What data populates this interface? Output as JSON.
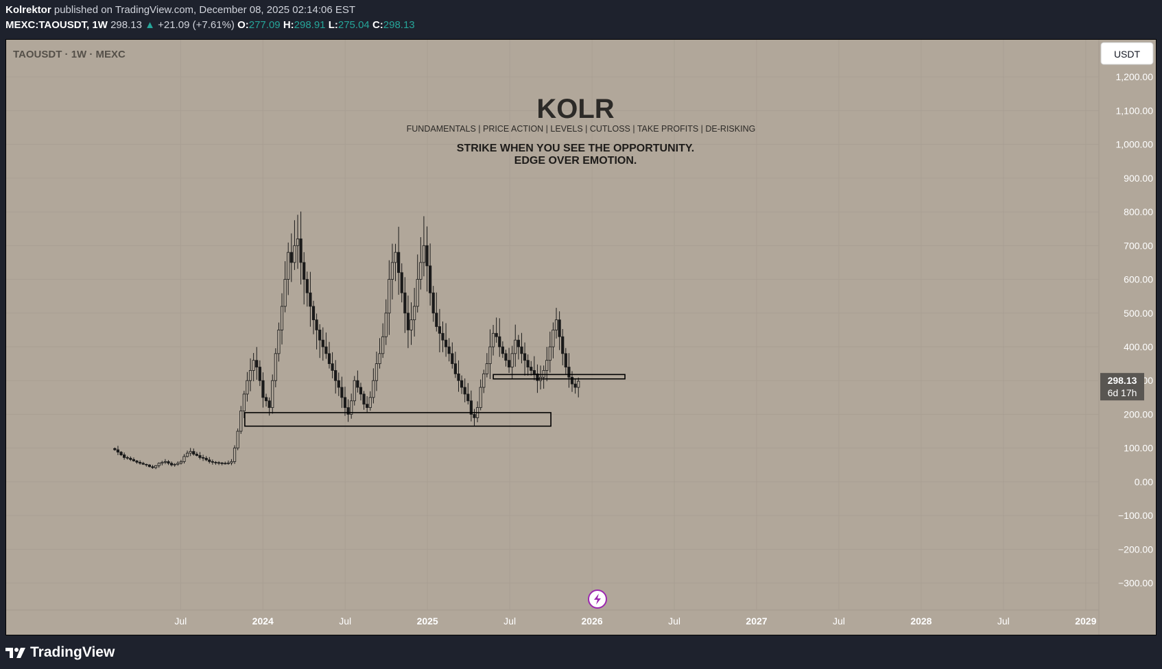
{
  "header": {
    "author": "Kolrektor",
    "published_text": "published on TradingView.com, December 08, 2025 02:14:06 EST",
    "symbol": "MEXC:TAOUSDT, 1W",
    "last": "298.13",
    "change_arrow": "▲",
    "change": "+21.09 (+7.61%)",
    "open_label": "O:",
    "open": "277.09",
    "high_label": "H:",
    "high": "298.91",
    "low_label": "L:",
    "low": "275.04",
    "close_label": "C:",
    "close": "298.13"
  },
  "chart_title": "TAOUSDT · 1W · MEXC",
  "currency_button": "USDT",
  "watermark": {
    "brand": "KOLR",
    "tagline": "FUNDAMENTALS | PRICE ACTION | LEVELS | CUTLOSS | TAKE PROFITS | DE-RISKING",
    "line1": "STRIKE WHEN YOU SEE THE OPPORTUNITY.",
    "line2": "EDGE OVER EMOTION."
  },
  "price_tag": {
    "price": "298.13",
    "countdown": "6d 17h"
  },
  "footer": {
    "brand": "TradingView"
  },
  "colors": {
    "chart_bg": "#b1a79a",
    "page_bg": "#1e222d",
    "up": "#26a69a",
    "candle": "#1a1a1a",
    "tag_bg": "#595652"
  },
  "chart_data": {
    "type": "candlestick",
    "title": "TAOUSDT · 1W · MEXC",
    "ylabel": "USDT",
    "ylim": [
      -380,
      1310
    ],
    "y_ticks": [
      1200,
      1100,
      1000,
      900,
      800,
      700,
      600,
      500,
      400,
      300,
      200,
      100,
      0,
      -100,
      -200,
      -300
    ],
    "y_tick_labels": [
      "1,200.00",
      "1,100.00",
      "1,000.00",
      "900.00",
      "800.00",
      "700.00",
      "600.00",
      "500.00",
      "400.00",
      "300.00",
      "200.00",
      "100.00",
      "0.00",
      "−100.00",
      "−200.00",
      "−300.00"
    ],
    "x_ticks": [
      {
        "label": "Jul",
        "t": 2023.5,
        "bold": false
      },
      {
        "label": "2024",
        "t": 2024.0,
        "bold": true
      },
      {
        "label": "Jul",
        "t": 2024.5,
        "bold": false
      },
      {
        "label": "2025",
        "t": 2025.0,
        "bold": true
      },
      {
        "label": "Jul",
        "t": 2025.5,
        "bold": false
      },
      {
        "label": "2026",
        "t": 2026.0,
        "bold": true
      },
      {
        "label": "Jul",
        "t": 2026.5,
        "bold": false
      },
      {
        "label": "2027",
        "t": 2027.0,
        "bold": true
      },
      {
        "label": "Jul",
        "t": 2027.5,
        "bold": false
      },
      {
        "label": "2028",
        "t": 2028.0,
        "bold": true
      },
      {
        "label": "Jul",
        "t": 2028.5,
        "bold": false
      },
      {
        "label": "2029",
        "t": 2029.0,
        "bold": true
      }
    ],
    "xlim": [
      2022.44,
      2029.08
    ],
    "series_start": 2023.1,
    "weekly_close": [
      95,
      88,
      80,
      72,
      70,
      66,
      62,
      58,
      55,
      52,
      50,
      45,
      42,
      48,
      55,
      58,
      60,
      55,
      50,
      52,
      55,
      60,
      75,
      85,
      90,
      82,
      78,
      72,
      70,
      65,
      60,
      58,
      57,
      56,
      55,
      54,
      56,
      60,
      100,
      150,
      210,
      260,
      300,
      330,
      360,
      340,
      300,
      250,
      240,
      220,
      300,
      380,
      450,
      520,
      600,
      680,
      650,
      700,
      720,
      650,
      600,
      560,
      520,
      480,
      450,
      420,
      400,
      380,
      350,
      330,
      300,
      280,
      250,
      220,
      200,
      240,
      300,
      280,
      260,
      230,
      220,
      250,
      300,
      350,
      380,
      430,
      500,
      600,
      650,
      680,
      620,
      560,
      500,
      450,
      480,
      520,
      600,
      650,
      700,
      640,
      560,
      500,
      460,
      440,
      420,
      400,
      380,
      350,
      320,
      300,
      280,
      260,
      240,
      200,
      190,
      220,
      280,
      320,
      350,
      400,
      440,
      430,
      400,
      380,
      360,
      340,
      380,
      420,
      400,
      380,
      360,
      340,
      330,
      320,
      300,
      310,
      330,
      360,
      400,
      450,
      480,
      430,
      380,
      340,
      310,
      290,
      280,
      298.13
    ],
    "level_boxes": [
      {
        "name": "support-zone",
        "low": 165,
        "high": 205,
        "t_start": 2023.89,
        "t_end": 2025.75
      },
      {
        "name": "resistance-zone",
        "low": 305,
        "high": 318,
        "t_start": 2025.4,
        "t_end": 2026.2
      }
    ],
    "last_price": 298.13
  }
}
